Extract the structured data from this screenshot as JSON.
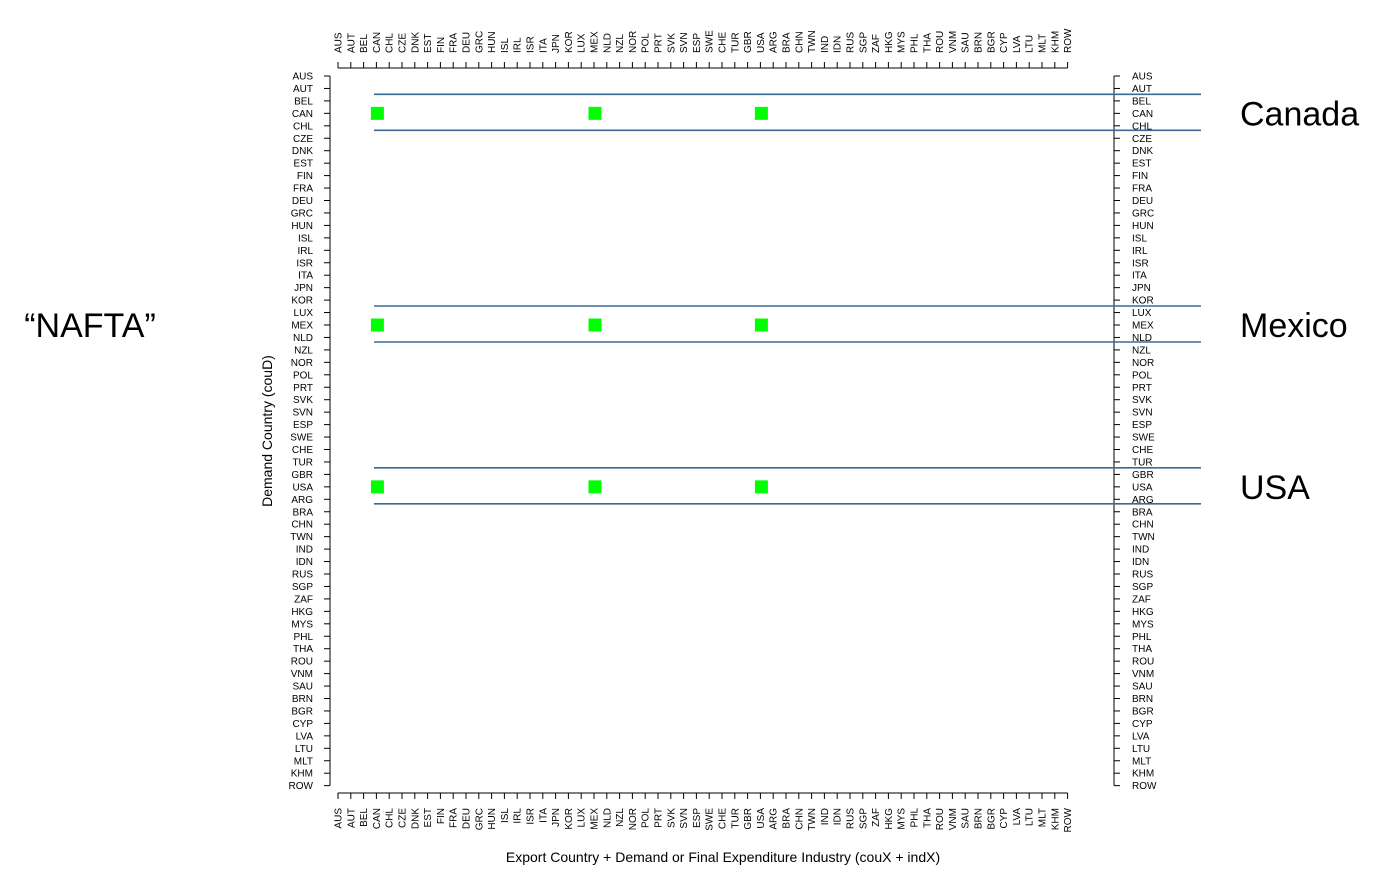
{
  "chart_data": {
    "type": "scatter",
    "title": "",
    "xlabel": "Export Country + Demand or Final Expenditure Industry (couX + indX)",
    "ylabel": "Demand Country (couD)",
    "x_categories": [
      "AUS",
      "AUT",
      "BEL",
      "CAN",
      "CHL",
      "CZE",
      "DNK",
      "EST",
      "FIN",
      "FRA",
      "DEU",
      "GRC",
      "HUN",
      "ISL",
      "IRL",
      "ISR",
      "ITA",
      "JPN",
      "KOR",
      "LUX",
      "MEX",
      "NLD",
      "NZL",
      "NOR",
      "POL",
      "PRT",
      "SVK",
      "SVN",
      "ESP",
      "SWE",
      "CHE",
      "TUR",
      "GBR",
      "USA",
      "ARG",
      "BRA",
      "CHN",
      "TWN",
      "IND",
      "IDN",
      "RUS",
      "SGP",
      "ZAF",
      "HKG",
      "MYS",
      "PHL",
      "THA",
      "ROU",
      "VNM",
      "SAU",
      "BRN",
      "BGR",
      "CYP",
      "LVA",
      "LTU",
      "MLT",
      "KHM",
      "ROW"
    ],
    "y_categories": [
      "AUS",
      "AUT",
      "BEL",
      "CAN",
      "CHL",
      "CZE",
      "DNK",
      "EST",
      "FIN",
      "FRA",
      "DEU",
      "GRC",
      "HUN",
      "ISL",
      "IRL",
      "ISR",
      "ITA",
      "JPN",
      "KOR",
      "LUX",
      "MEX",
      "NLD",
      "NZL",
      "NOR",
      "POL",
      "PRT",
      "SVK",
      "SVN",
      "ESP",
      "SWE",
      "CHE",
      "TUR",
      "GBR",
      "USA",
      "ARG",
      "BRA",
      "CHN",
      "TWN",
      "IND",
      "IDN",
      "RUS",
      "SGP",
      "ZAF",
      "HKG",
      "MYS",
      "PHL",
      "THA",
      "ROU",
      "VNM",
      "SAU",
      "BRN",
      "BGR",
      "CYP",
      "LVA",
      "LTU",
      "MLT",
      "KHM",
      "ROW"
    ],
    "points": [
      {
        "x": "CAN",
        "y": "CAN"
      },
      {
        "x": "MEX",
        "y": "CAN"
      },
      {
        "x": "USA",
        "y": "CAN"
      },
      {
        "x": "CAN",
        "y": "MEX"
      },
      {
        "x": "MEX",
        "y": "MEX"
      },
      {
        "x": "USA",
        "y": "MEX"
      },
      {
        "x": "CAN",
        "y": "USA"
      },
      {
        "x": "MEX",
        "y": "USA"
      },
      {
        "x": "USA",
        "y": "USA"
      }
    ],
    "highlight_rows": [
      {
        "label": "Canada",
        "y": "CAN"
      },
      {
        "label": "Mexico",
        "y": "MEX"
      },
      {
        "label": "USA",
        "y": "USA"
      }
    ],
    "group_label": "“NAFTA”",
    "grid": false,
    "colors": {
      "point": "#00ff00",
      "band_line": "#3a6b96",
      "axis": "#000000"
    }
  }
}
